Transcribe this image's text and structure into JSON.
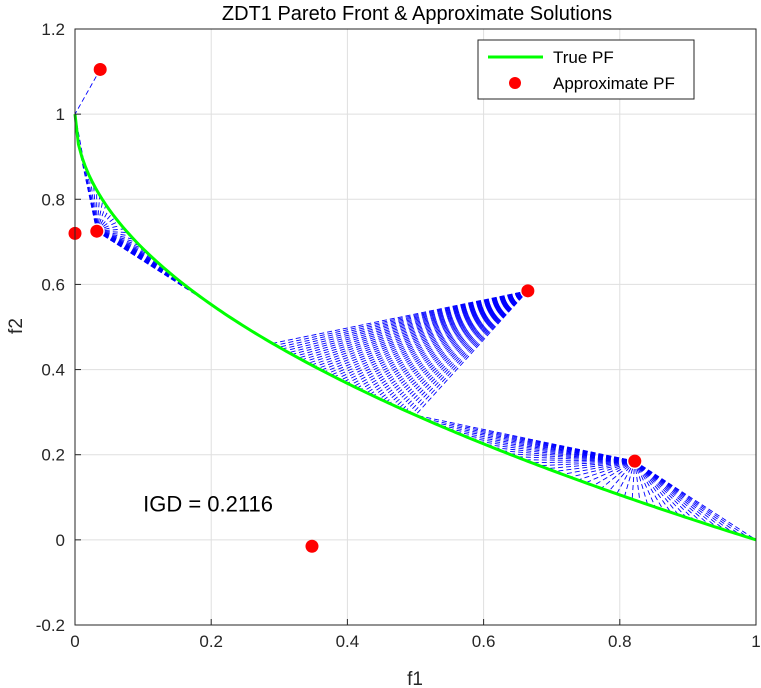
{
  "chart_data": {
    "type": "line",
    "title": "ZDT1 Pareto Front & Approximate Solutions",
    "xlabel": "f1",
    "ylabel": "f2",
    "xlim": [
      0,
      1
    ],
    "ylim": [
      -0.2,
      1.2
    ],
    "xticks": [
      0,
      0.2,
      0.4,
      0.6,
      0.8,
      1
    ],
    "yticks": [
      -0.2,
      0,
      0.2,
      0.4,
      0.6,
      0.8,
      1,
      1.2
    ],
    "xtick_labels": [
      "0",
      "0.2",
      "0.4",
      "0.6",
      "0.8",
      "1"
    ],
    "ytick_labels": [
      "-0.2",
      "0",
      "0.2",
      "0.4",
      "0.6",
      "0.8",
      "1",
      "1.2"
    ],
    "grid": true,
    "legend_position": "top-right",
    "series": [
      {
        "name": "True PF",
        "kind": "line",
        "color": "#00ff00",
        "function": "f2 = 1 - sqrt(f1)",
        "x": [
          0,
          0.01,
          0.02,
          0.04,
          0.06,
          0.08,
          0.1,
          0.15,
          0.2,
          0.25,
          0.3,
          0.35,
          0.4,
          0.45,
          0.5,
          0.55,
          0.6,
          0.65,
          0.7,
          0.75,
          0.8,
          0.85,
          0.9,
          0.95,
          1.0
        ],
        "y": [
          1.0,
          0.9,
          0.859,
          0.8,
          0.755,
          0.717,
          0.684,
          0.613,
          0.553,
          0.5,
          0.452,
          0.408,
          0.368,
          0.329,
          0.293,
          0.258,
          0.225,
          0.194,
          0.163,
          0.134,
          0.106,
          0.078,
          0.051,
          0.025,
          0.0
        ]
      },
      {
        "name": "Approximate PF",
        "kind": "scatter",
        "color": "#ff0000",
        "x": [
          0.037,
          0.0,
          0.032,
          0.665,
          0.822,
          0.348
        ],
        "y": [
          1.105,
          0.72,
          0.725,
          0.585,
          0.185,
          -0.015
        ]
      }
    ],
    "connector_lines": {
      "color": "#0000ff",
      "style": "dashed",
      "segments": [
        {
          "from": [
            0.037,
            1.105
          ],
          "pf_range": [
            0.0,
            0.0
          ]
        },
        {
          "from": [
            0.032,
            0.725
          ],
          "pf_range": [
            0.0,
            0.2
          ]
        },
        {
          "from": [
            0.665,
            0.585
          ],
          "pf_range": [
            0.29,
            0.5
          ]
        },
        {
          "from": [
            0.822,
            0.185
          ],
          "pf_range": [
            0.5,
            1.0
          ]
        }
      ]
    },
    "annotations": [
      {
        "text": "IGD = 0.2116",
        "x": 0.1,
        "y": 0.085
      }
    ]
  }
}
